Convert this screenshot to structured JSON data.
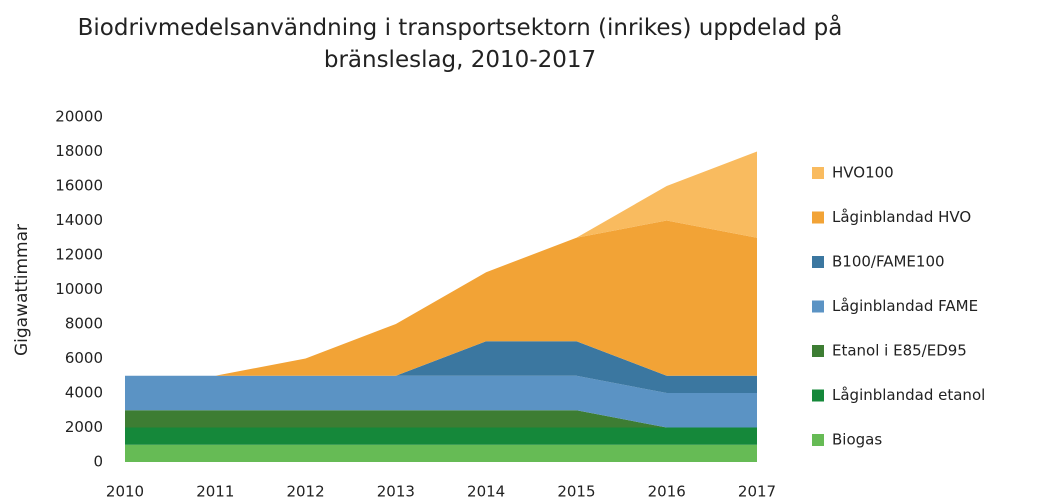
{
  "chart_data": {
    "type": "stacked_area",
    "title": "Biodrivmedelsanvändning i transportsektorn (inrikes) uppdelad på bränsleslag, 2010-2017",
    "y_label": "Gigawattimmar",
    "categories": [
      "2010",
      "2011",
      "2012",
      "2013",
      "2014",
      "2015",
      "2016",
      "2017"
    ],
    "ylim": [
      0,
      20000
    ],
    "yticks": [
      0,
      2000,
      4000,
      6000,
      8000,
      10000,
      12000,
      14000,
      16000,
      18000,
      20000
    ],
    "legend": "right",
    "series": [
      {
        "name": "Biogas",
        "color": "#66bb55",
        "values": [
          1000,
          1000,
          1000,
          1000,
          1000,
          1000,
          1000,
          1000
        ]
      },
      {
        "name": "Låginblandad etanol",
        "color": "#15883a",
        "values": [
          1000,
          1000,
          1000,
          1000,
          1000,
          1000,
          1000,
          1000
        ]
      },
      {
        "name": "Etanol i E85/ED95",
        "color": "#3d7d33",
        "values": [
          1000,
          1000,
          1000,
          1000,
          1000,
          1000,
          0,
          0
        ]
      },
      {
        "name": "Låginblandad FAME",
        "color": "#5b93c4",
        "values": [
          2000,
          2000,
          2000,
          2000,
          2000,
          2000,
          2000,
          2000
        ]
      },
      {
        "name": "B100/FAME100",
        "color": "#3b77a0",
        "values": [
          0,
          0,
          0,
          0,
          2000,
          2000,
          1000,
          1000
        ]
      },
      {
        "name": "Låginblandad HVO",
        "color": "#f2a336",
        "values": [
          0,
          0,
          1000,
          3000,
          4000,
          6000,
          9000,
          8000
        ]
      },
      {
        "name": "HVO100",
        "color": "#f9bb5f",
        "values": [
          0,
          0,
          0,
          0,
          0,
          0,
          2000,
          5000
        ]
      }
    ]
  }
}
